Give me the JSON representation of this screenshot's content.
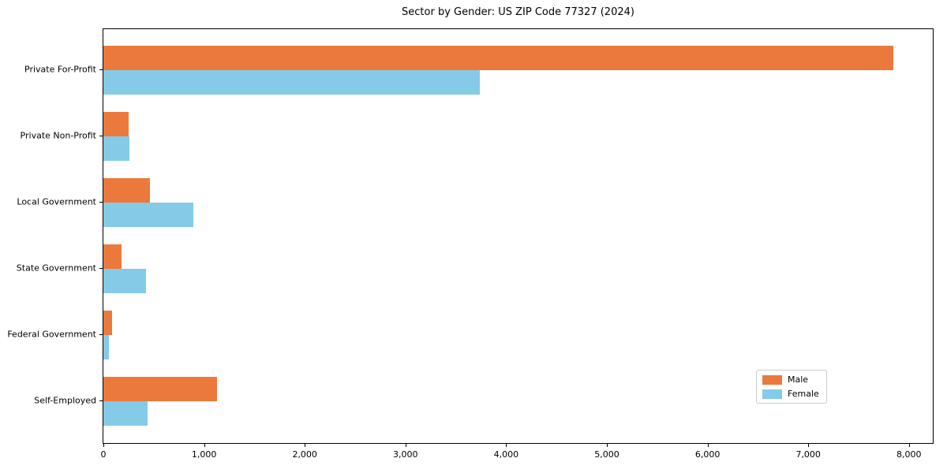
{
  "chart_data": {
    "type": "bar",
    "orientation": "horizontal",
    "title": "Sector by Gender: US ZIP Code 77327 (2024)",
    "categories": [
      "Private For-Profit",
      "Private Non-Profit",
      "Local Government",
      "State Government",
      "Federal Government",
      "Self-Employed"
    ],
    "series": [
      {
        "name": "Male",
        "color": "#EC793C",
        "values": [
          7845,
          250,
          460,
          180,
          85,
          1130
        ]
      },
      {
        "name": "Female",
        "color": "#85CBE8",
        "values": [
          3735,
          255,
          890,
          420,
          55,
          440
        ]
      }
    ],
    "xlabel": "",
    "ylabel": "",
    "xlim": [
      0,
      8237
    ],
    "x_ticks": [
      0,
      1000,
      2000,
      3000,
      4000,
      5000,
      6000,
      7000,
      8000
    ],
    "x_tick_labels": [
      "0",
      "1,000",
      "2,000",
      "3,000",
      "4,000",
      "5,000",
      "6,000",
      "7,000",
      "8,000"
    ],
    "grid": false,
    "legend": {
      "position": "lower right",
      "entries": [
        "Male",
        "Female"
      ]
    }
  }
}
